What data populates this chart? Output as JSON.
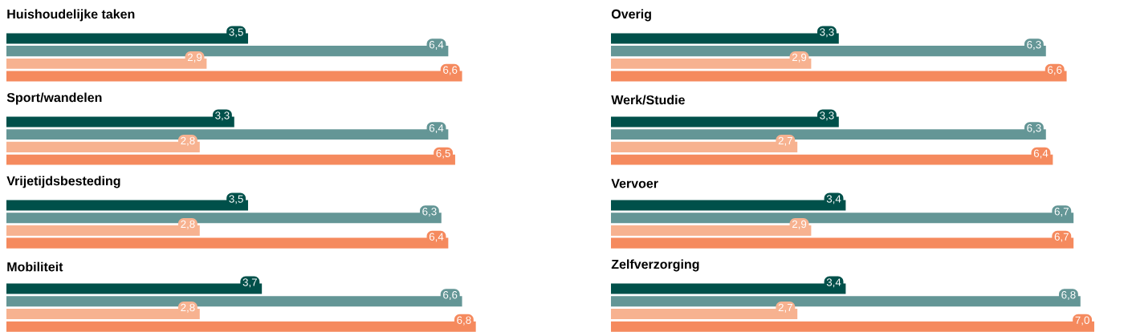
{
  "chart_data": [
    {
      "type": "bar",
      "orientation": "horizontal",
      "title": "Huishoudelijke taken",
      "categories": [
        null,
        null,
        null,
        null
      ],
      "values": [
        3.5,
        6.4,
        2.9,
        6.6
      ],
      "colors": [
        "#00504a",
        "#649696",
        "#f7b290",
        "#f58a5e"
      ],
      "value_labels": [
        "3,5",
        "6,4",
        "2,9",
        "6,6"
      ],
      "tick_labels": false
    },
    {
      "type": "bar",
      "orientation": "horizontal",
      "title": "Overig",
      "categories": [
        null,
        null,
        null,
        null
      ],
      "values": [
        3.3,
        6.3,
        2.9,
        6.6
      ],
      "colors": [
        "#00504a",
        "#649696",
        "#f7b290",
        "#f58a5e"
      ],
      "value_labels": [
        "3,3",
        "6,3",
        "2,9",
        "6,6"
      ],
      "tick_labels": false
    },
    {
      "type": "bar",
      "orientation": "horizontal",
      "title": "Sport/wandelen",
      "categories": [
        null,
        null,
        null,
        null
      ],
      "values": [
        3.3,
        6.4,
        2.8,
        6.5
      ],
      "colors": [
        "#00504a",
        "#649696",
        "#f7b290",
        "#f58a5e"
      ],
      "value_labels": [
        "3,3",
        "6,4",
        "2,8",
        "6,5"
      ],
      "tick_labels": false
    },
    {
      "type": "bar",
      "orientation": "horizontal",
      "title": "Werk/Studie",
      "categories": [
        null,
        null,
        null,
        null
      ],
      "values": [
        3.3,
        6.3,
        2.7,
        6.4
      ],
      "colors": [
        "#00504a",
        "#649696",
        "#f7b290",
        "#f58a5e"
      ],
      "value_labels": [
        "3,3",
        "6,3",
        "2,7",
        "6,4"
      ],
      "tick_labels": false
    },
    {
      "type": "bar",
      "orientation": "horizontal",
      "title": "Vrijetijdsbesteding",
      "categories": [
        null,
        null,
        null,
        null
      ],
      "values": [
        3.5,
        6.3,
        2.8,
        6.4
      ],
      "colors": [
        "#00504a",
        "#649696",
        "#f7b290",
        "#f58a5e"
      ],
      "value_labels": [
        "3,5",
        "6,3",
        "2,8",
        "6,4"
      ],
      "tick_labels": false
    },
    {
      "type": "bar",
      "orientation": "horizontal",
      "title": "Vervoer",
      "categories": [
        null,
        null,
        null,
        null
      ],
      "values": [
        3.4,
        6.7,
        2.9,
        6.7
      ],
      "colors": [
        "#00504a",
        "#649696",
        "#f7b290",
        "#f58a5e"
      ],
      "value_labels": [
        "3,4",
        "6,7",
        "2,9",
        "6,7"
      ],
      "tick_labels": false
    },
    {
      "type": "bar",
      "orientation": "horizontal",
      "title": "Mobiliteit",
      "categories": [
        null,
        null,
        null,
        null
      ],
      "values": [
        3.7,
        6.6,
        2.8,
        6.8
      ],
      "colors": [
        "#00504a",
        "#649696",
        "#f7b290",
        "#f58a5e"
      ],
      "value_labels": [
        "3,7",
        "6,6",
        "2,8",
        "6,8"
      ],
      "tick_labels": false
    },
    {
      "type": "bar",
      "orientation": "horizontal",
      "title": "Zelfverzorging",
      "categories": [
        null,
        null,
        null,
        null
      ],
      "values": [
        3.4,
        6.8,
        2.7,
        7.0
      ],
      "colors": [
        "#00504a",
        "#649696",
        "#f7b290",
        "#f58a5e"
      ],
      "value_labels": [
        "3,4",
        "6,8",
        "2,7",
        "7,0"
      ],
      "tick_labels": false
    }
  ]
}
